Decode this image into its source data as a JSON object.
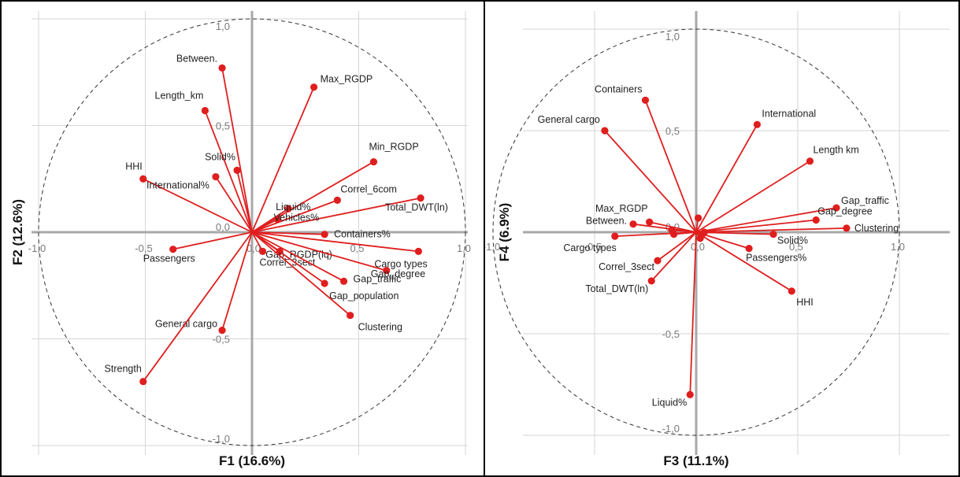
{
  "chart_data": [
    {
      "type": "scatter",
      "xlabel": "F1 (16.6%)",
      "ylabel": "F2 (12.6%)",
      "xlim": [
        -1.0,
        1.0
      ],
      "ylim": [
        -1.0,
        1.0
      ],
      "grid": true,
      "x_ticks": [
        "-1,0",
        "-0,5",
        "0,0",
        "0,5",
        "1,0"
      ],
      "y_ticks": [
        "1,0",
        "0,5",
        "0,0",
        "-0,5",
        "-1,0"
      ],
      "points": [
        {
          "label": "Between.",
          "x": -0.14,
          "y": 0.77
        },
        {
          "label": "Length_km",
          "x": -0.22,
          "y": 0.57
        },
        {
          "label": "Max_RGDP",
          "x": 0.29,
          "y": 0.68
        },
        {
          "label": "Min_RGDP",
          "x": 0.57,
          "y": 0.33
        },
        {
          "label": "Solid%",
          "x": -0.07,
          "y": 0.29
        },
        {
          "label": "HHI",
          "x": -0.51,
          "y": 0.25
        },
        {
          "label": "International%",
          "x": -0.17,
          "y": 0.26
        },
        {
          "label": "Liquid%",
          "x": 0.17,
          "y": 0.11
        },
        {
          "label": "Correl_6com",
          "x": 0.4,
          "y": 0.15
        },
        {
          "label": "Total_DWT(ln)",
          "x": 0.79,
          "y": 0.16
        },
        {
          "label": "Vehicles%",
          "x": 0.12,
          "y": 0.06
        },
        {
          "label": "Containers%",
          "x": 0.34,
          "y": -0.01
        },
        {
          "label": "Passengers",
          "x": -0.37,
          "y": -0.08
        },
        {
          "label": "Gap_RGDP(lq)",
          "x": 0.13,
          "y": -0.09
        },
        {
          "label": "Correl_3sect",
          "x": 0.05,
          "y": -0.09
        },
        {
          "label": "Cargo types",
          "x": 0.78,
          "y": -0.09
        },
        {
          "label": "Gap_degree",
          "x": 0.63,
          "y": -0.18
        },
        {
          "label": "Gap_traffic",
          "x": 0.43,
          "y": -0.23
        },
        {
          "label": "Gap_population",
          "x": 0.34,
          "y": -0.24
        },
        {
          "label": "Clustering",
          "x": 0.46,
          "y": -0.39
        },
        {
          "label": "General cargo",
          "x": -0.14,
          "y": -0.46
        },
        {
          "label": "Strength",
          "x": -0.51,
          "y": -0.7
        }
      ]
    },
    {
      "type": "scatter",
      "xlabel": "F3 (11.1%)",
      "ylabel": "F4 (6.9%)",
      "xlim": [
        -1.0,
        1.0
      ],
      "ylim": [
        -1.0,
        1.0
      ],
      "grid": true,
      "x_ticks": [
        "-1,0",
        "-0,5",
        "0,0",
        "0,5",
        "1,0"
      ],
      "y_ticks": [
        "1,0",
        "0,5",
        "0,0",
        "-0,5",
        "-1,0"
      ],
      "points": [
        {
          "label": "Containers",
          "x": -0.25,
          "y": 0.65
        },
        {
          "label": "General cargo",
          "x": -0.45,
          "y": 0.5
        },
        {
          "label": "International",
          "x": 0.3,
          "y": 0.53
        },
        {
          "label": "Length km",
          "x": 0.56,
          "y": 0.35
        },
        {
          "label": "Gap_traffic",
          "x": 0.69,
          "y": 0.12
        },
        {
          "label": "Gap_degree",
          "x": 0.59,
          "y": 0.06
        },
        {
          "label": "Clustering",
          "x": 0.74,
          "y": 0.02
        },
        {
          "label": "Max_RGDP",
          "x": -0.23,
          "y": 0.05
        },
        {
          "label": "Between.",
          "x": -0.31,
          "y": 0.04
        },
        {
          "label": "Cargo types",
          "x": -0.4,
          "y": -0.02
        },
        {
          "label": "Correl_3sect",
          "x": -0.19,
          "y": -0.14
        },
        {
          "label": "Total_DWT(ln)",
          "x": -0.22,
          "y": -0.24
        },
        {
          "label": "Solid%",
          "x": 0.38,
          "y": -0.01
        },
        {
          "label": "Passengers%",
          "x": 0.26,
          "y": -0.08
        },
        {
          "label": "HHI",
          "x": 0.47,
          "y": -0.29
        },
        {
          "label": "Liquid%",
          "x": -0.03,
          "y": -0.8
        },
        {
          "label": "",
          "x": 0.01,
          "y": 0.07
        },
        {
          "label": "",
          "x": -0.12,
          "y": 0.01
        },
        {
          "label": "",
          "x": -0.11,
          "y": -0.01
        },
        {
          "label": "",
          "x": 0.03,
          "y": -0.01
        },
        {
          "label": "",
          "x": 0.04,
          "y": 0.0
        },
        {
          "label": "",
          "x": 0.02,
          "y": -0.03
        }
      ]
    }
  ]
}
